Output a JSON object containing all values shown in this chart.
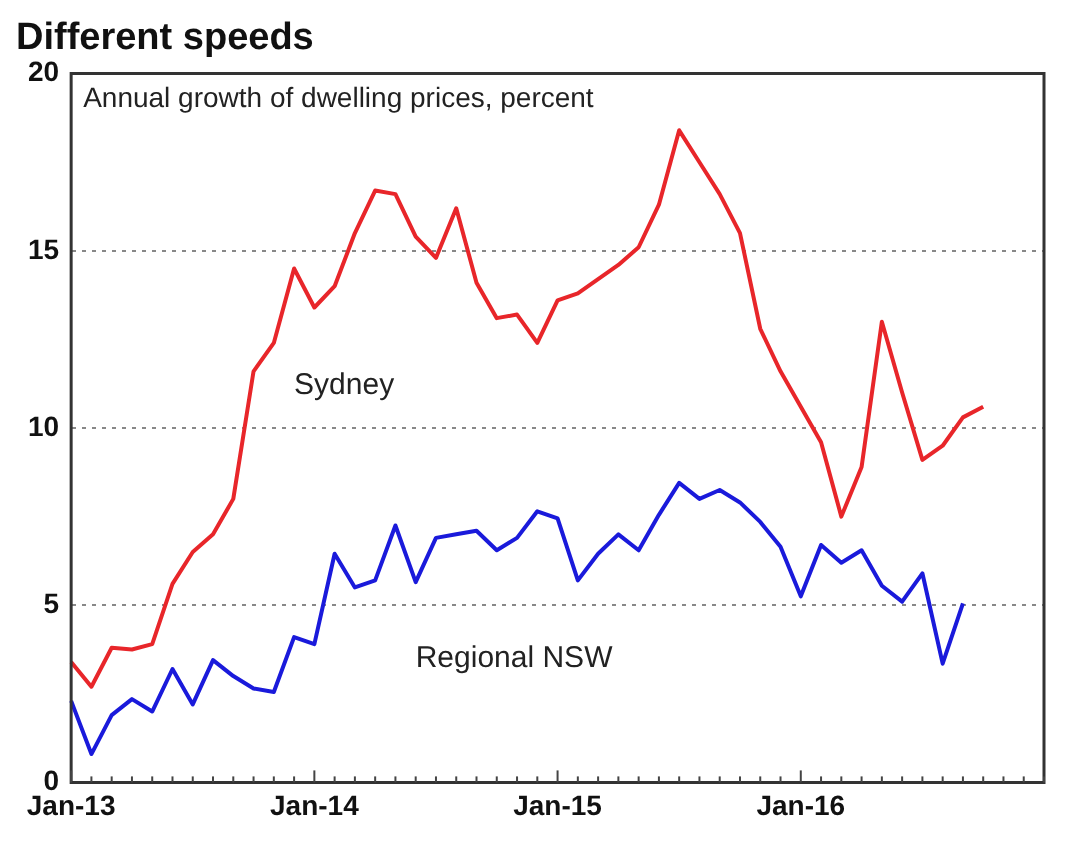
{
  "chart_data": {
    "type": "line",
    "title": "Different speeds",
    "subtitle": "Annual growth of dwelling prices, percent",
    "categories": [
      "Jan-13",
      null,
      null,
      null,
      null,
      null,
      null,
      null,
      null,
      null,
      null,
      null,
      "Jan-14",
      null,
      null,
      null,
      null,
      null,
      null,
      null,
      null,
      null,
      null,
      null,
      "Jan-15",
      null,
      null,
      null,
      null,
      null,
      null,
      null,
      null,
      null,
      null,
      null,
      "Jan-16",
      null,
      null,
      null,
      null,
      null,
      null,
      null,
      null,
      null,
      null,
      null,
      null
    ],
    "series": [
      {
        "name": "Sydney",
        "color": "#e8262a",
        "values": [
          3.4,
          2.7,
          3.8,
          3.75,
          3.9,
          5.6,
          6.5,
          7.0,
          8.0,
          11.6,
          12.4,
          14.5,
          13.4,
          14.0,
          15.5,
          16.7,
          16.6,
          15.4,
          14.8,
          16.2,
          14.1,
          13.1,
          13.2,
          12.4,
          13.6,
          13.8,
          14.2,
          14.6,
          15.1,
          16.3,
          18.4,
          17.5,
          16.6,
          15.5,
          12.8,
          11.6,
          10.6,
          9.6,
          7.5,
          8.9,
          13.0,
          11.0,
          9.1,
          9.5,
          10.3,
          10.6,
          null,
          null,
          null
        ]
      },
      {
        "name": "Regional NSW",
        "color": "#1a1adb",
        "values": [
          2.3,
          0.8,
          1.9,
          2.35,
          2.0,
          3.2,
          2.2,
          3.45,
          3.0,
          2.65,
          2.55,
          4.1,
          3.9,
          6.45,
          5.5,
          5.7,
          7.25,
          5.65,
          6.9,
          7.0,
          7.1,
          6.55,
          6.9,
          7.65,
          7.45,
          5.7,
          6.45,
          7.0,
          6.55,
          7.55,
          8.45,
          8.0,
          8.25,
          7.9,
          7.35,
          6.65,
          5.25,
          6.7,
          6.2,
          6.55,
          5.55,
          5.1,
          5.9,
          3.35,
          5.05,
          null,
          null,
          null,
          null
        ]
      }
    ],
    "ylim": [
      0,
      20
    ],
    "yticks": [
      0,
      5,
      10,
      15,
      20
    ],
    "grid": "y",
    "legend": false,
    "marker": "none",
    "line_style": "solid"
  }
}
